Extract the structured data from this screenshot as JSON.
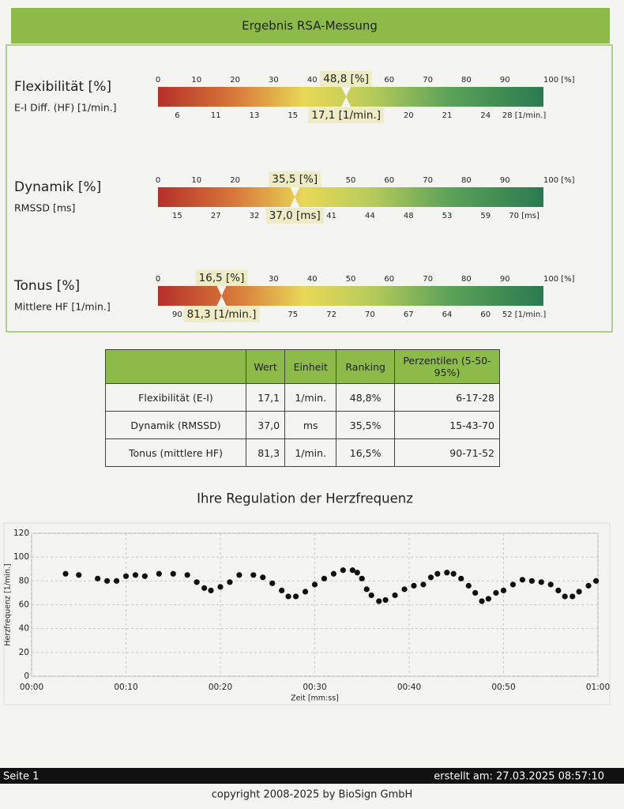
{
  "header": {
    "title": "Ergebnis RSA-Messung"
  },
  "gauges": [
    {
      "title": "Flexibilität [%]",
      "subtitle": "E-I Diff. (HF) [1/min.]",
      "top_ticks": [
        0,
        10,
        20,
        30,
        40,
        60,
        70,
        80,
        90,
        {
          "value": 100,
          "label": "100 [%]"
        }
      ],
      "top_marker": {
        "value": 48.8,
        "label": "48,8 [%]"
      },
      "bottom_ticks": [
        {
          "value": 5,
          "label": "6"
        },
        {
          "value": 15,
          "label": "11"
        },
        {
          "value": 25,
          "label": "13"
        },
        {
          "value": 35,
          "label": "15"
        },
        {
          "value": 65,
          "label": "20"
        },
        {
          "value": 75,
          "label": "21"
        },
        {
          "value": 85,
          "label": "24"
        },
        {
          "value": 95,
          "label": "28 [1/min.]"
        }
      ],
      "bottom_marker": {
        "value": 17.1,
        "label": "17,1 [1/min.]"
      }
    },
    {
      "title": "Dynamik [%]",
      "subtitle": "RMSSD [ms]",
      "top_ticks": [
        0,
        10,
        20,
        50,
        60,
        70,
        80,
        90,
        {
          "value": 100,
          "label": "100 [%]"
        }
      ],
      "top_marker": {
        "value": 35.5,
        "label": "35,5 [%]"
      },
      "bottom_ticks": [
        {
          "value": 5,
          "label": "15"
        },
        {
          "value": 15,
          "label": "27"
        },
        {
          "value": 25,
          "label": "32"
        },
        {
          "value": 45,
          "label": "41"
        },
        {
          "value": 55,
          "label": "44"
        },
        {
          "value": 65,
          "label": "48"
        },
        {
          "value": 75,
          "label": "53"
        },
        {
          "value": 85,
          "label": "59"
        },
        {
          "value": 95,
          "label": "70 [ms]"
        }
      ],
      "bottom_marker": {
        "value": 37.0,
        "label": "37,0 [ms]"
      }
    },
    {
      "title": "Tonus [%]",
      "subtitle": "Mittlere HF [1/min.]",
      "top_ticks": [
        0,
        30,
        40,
        50,
        60,
        70,
        80,
        90,
        {
          "value": 100,
          "label": "100 [%]"
        }
      ],
      "top_marker": {
        "value": 16.5,
        "label": "16,5 [%]"
      },
      "bottom_ticks": [
        {
          "value": 5,
          "label": "90"
        },
        {
          "value": 35,
          "label": "75"
        },
        {
          "value": 45,
          "label": "72"
        },
        {
          "value": 55,
          "label": "70"
        },
        {
          "value": 65,
          "label": "67"
        },
        {
          "value": 75,
          "label": "64"
        },
        {
          "value": 85,
          "label": "60"
        },
        {
          "value": 95,
          "label": "52 [1/min.]"
        }
      ],
      "bottom_marker": {
        "value": 81.3,
        "label": "81,3 [1/min.]"
      }
    }
  ],
  "table": {
    "headers": [
      "Wert",
      "Einheit",
      "Ranking",
      "Perzentilen (5-50-95%)"
    ],
    "rows": [
      [
        "Flexibilität (E-I)",
        "17,1",
        "1/min.",
        "48,8%",
        "6-17-28"
      ],
      [
        "Dynamik (RMSSD)",
        "37,0",
        "ms",
        "35,5%",
        "15-43-70"
      ],
      [
        "Tonus (mittlere HF)",
        "81,3",
        "1/min.",
        "16,5%",
        "90-71-52"
      ]
    ]
  },
  "chart_data": {
    "type": "scatter",
    "title": "Ihre Regulation der Herzfrequenz",
    "xlabel": "Zeit [mm:ss]",
    "ylabel": "Herzfrequenz [1/min.]",
    "x": [
      3.6,
      5,
      7,
      8,
      9,
      10,
      11,
      12,
      13.5,
      15,
      16.5,
      17.5,
      18.3,
      19,
      20,
      21,
      22,
      23.5,
      24.5,
      25.5,
      26.5,
      27.2,
      28,
      29,
      30,
      31,
      32,
      33,
      34,
      34.5,
      35,
      35.5,
      36,
      36.8,
      37.5,
      38.5,
      39.5,
      40.5,
      41.5,
      42.3,
      43,
      44,
      44.7,
      45.5,
      46.3,
      47,
      47.7,
      48.4,
      49.2,
      50,
      51,
      52,
      53,
      54,
      55,
      55.8,
      56.5,
      57.3,
      58,
      59,
      59.8
    ],
    "values": [
      86,
      85,
      82,
      80,
      80,
      84,
      85,
      84,
      86,
      86,
      85,
      79,
      74,
      72,
      75,
      79,
      85,
      85,
      83,
      78,
      72,
      67,
      67,
      71,
      77,
      82,
      86,
      89,
      89,
      87,
      82,
      73,
      68,
      63,
      64,
      68,
      73,
      76,
      77,
      83,
      86,
      87,
      86,
      82,
      76,
      70,
      63,
      65,
      70,
      72,
      77,
      81,
      80,
      79,
      77,
      72,
      67,
      67,
      71,
      76,
      80
    ],
    "color": "#111111",
    "xlim": [
      0,
      60
    ],
    "xticks": [
      {
        "value": 0,
        "label": "00:00"
      },
      {
        "value": 10,
        "label": "00:10"
      },
      {
        "value": 20,
        "label": "00:20"
      },
      {
        "value": 30,
        "label": "00:30"
      },
      {
        "value": 40,
        "label": "00:40"
      },
      {
        "value": 50,
        "label": "00:50"
      },
      {
        "value": 60,
        "label": "01:00"
      }
    ],
    "ylim": [
      0,
      120
    ],
    "yticks": [
      0,
      20,
      40,
      60,
      80,
      100,
      120
    ],
    "grid": true
  },
  "footer": {
    "page": "Seite 1",
    "created": "erstellt am: 27.03.2025 08:57:10",
    "copyright": "copyright 2008-2025 by BioSign GmbH"
  }
}
